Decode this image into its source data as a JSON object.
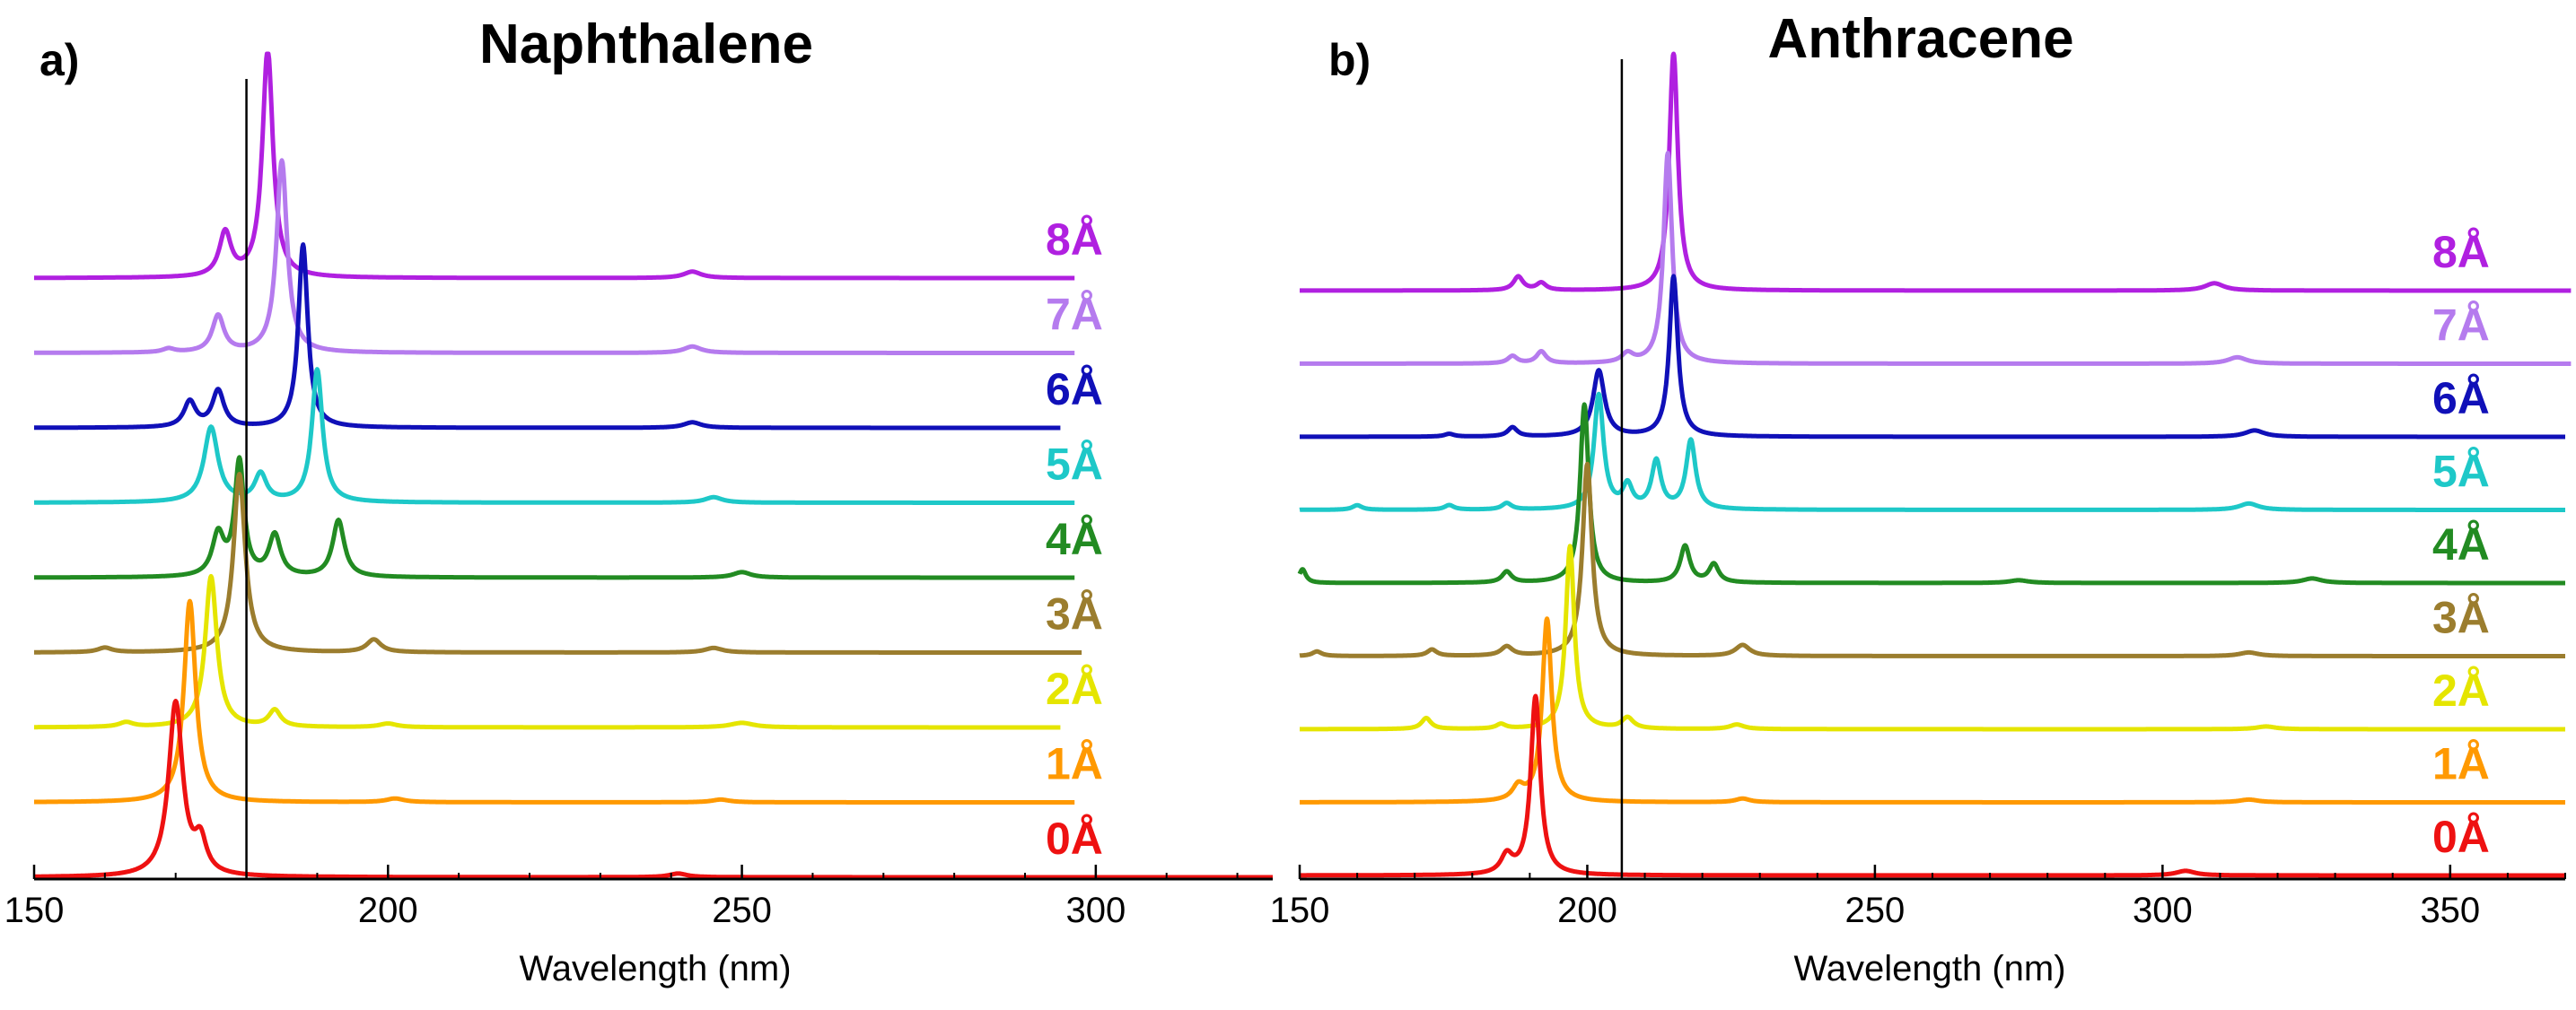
{
  "chart_data": [
    {
      "type": "line",
      "panel": "a)",
      "title": "Naphthalene",
      "xlabel": "Wavelength (nm)",
      "ylabel": "",
      "xlim": [
        150,
        325
      ],
      "xticks": [
        150,
        200,
        250,
        300
      ],
      "xtick_labels": [
        "150",
        "200",
        "250",
        "300"
      ],
      "reference_line_x": 180,
      "grid": false,
      "series": [
        {
          "name": "0Å",
          "label": "0Å",
          "color": "#ee1111",
          "offset": 0,
          "xmax": 325,
          "peaks": [
            [
              170,
              1.9,
              1.2
            ],
            [
              173.5,
              0.35,
              1.0
            ],
            [
              241,
              0.04,
              1.5
            ]
          ]
        },
        {
          "name": "1Å",
          "label": "1Å",
          "color": "#ff9900",
          "offset": 1,
          "xmax": 297,
          "peaks": [
            [
              172,
              2.2,
              1.0
            ],
            [
              201,
              0.04,
              1.5
            ],
            [
              247,
              0.03,
              1.5
            ]
          ]
        },
        {
          "name": "2Å",
          "label": "2Å",
          "color": "#e5e500",
          "offset": 2,
          "xmax": 295,
          "peaks": [
            [
              163,
              0.05,
              1.2
            ],
            [
              175,
              1.65,
              1.0
            ],
            [
              184,
              0.18,
              1.0
            ],
            [
              200,
              0.04,
              1.5
            ],
            [
              250,
              0.05,
              2.0
            ]
          ]
        },
        {
          "name": "3Å",
          "label": "3Å",
          "color": "#9b7d2e",
          "offset": 3,
          "xmax": 298,
          "peaks": [
            [
              160,
              0.05,
              1.2
            ],
            [
              179,
              1.95,
              1.0
            ],
            [
              198,
              0.14,
              1.2
            ],
            [
              246,
              0.05,
              1.5
            ]
          ]
        },
        {
          "name": "4Å",
          "label": "4Å",
          "color": "#228b22",
          "offset": 4,
          "xmax": 297,
          "peaks": [
            [
              176,
              0.45,
              1.0
            ],
            [
              179,
              1.25,
              0.8
            ],
            [
              184,
              0.45,
              1.0
            ],
            [
              193,
              0.62,
              1.0
            ],
            [
              250,
              0.06,
              1.5
            ]
          ]
        },
        {
          "name": "5Å",
          "label": "5Å",
          "color": "#1ec8c8",
          "offset": 5,
          "xmax": 297,
          "peaks": [
            [
              175,
              0.82,
              1.2
            ],
            [
              182,
              0.3,
              1.0
            ],
            [
              190,
              1.45,
              0.9
            ],
            [
              246,
              0.06,
              1.5
            ]
          ]
        },
        {
          "name": "6Å",
          "label": "6Å",
          "color": "#1010b8",
          "offset": 6,
          "xmax": 295,
          "peaks": [
            [
              172,
              0.28,
              1.0
            ],
            [
              176,
              0.4,
              1.0
            ],
            [
              188,
              2.0,
              0.8
            ],
            [
              243,
              0.06,
              1.5
            ]
          ]
        },
        {
          "name": "7Å",
          "label": "7Å",
          "color": "#b57bee",
          "offset": 7,
          "xmax": 297,
          "peaks": [
            [
              169,
              0.04,
              1.0
            ],
            [
              176,
              0.4,
              1.0
            ],
            [
              185,
              2.1,
              0.9
            ],
            [
              243,
              0.07,
              1.5
            ]
          ]
        },
        {
          "name": "8Å",
          "label": "8Å",
          "color": "#b020e0",
          "offset": 8,
          "xmax": 297,
          "peaks": [
            [
              177,
              0.48,
              1.0
            ],
            [
              183,
              2.5,
              0.9
            ],
            [
              243,
              0.07,
              1.5
            ]
          ]
        }
      ]
    },
    {
      "type": "line",
      "panel": "b)",
      "title": "Anthracene",
      "xlabel": "Wavelength (nm)",
      "ylabel": "",
      "xlim": [
        150,
        370
      ],
      "xticks": [
        150,
        200,
        250,
        300,
        350
      ],
      "xtick_labels": [
        "150",
        "200",
        "250",
        "300",
        "350"
      ],
      "reference_line_x": 206,
      "grid": false,
      "series": [
        {
          "name": "0Å",
          "label": "0Å",
          "color": "#ee1111",
          "offset": 0,
          "xmax": 370,
          "peaks": [
            [
              186,
              0.2,
              1.2
            ],
            [
              191,
              1.95,
              1.0
            ],
            [
              304,
              0.05,
              2.0
            ]
          ]
        },
        {
          "name": "1Å",
          "label": "1Å",
          "color": "#ff9900",
          "offset": 1,
          "xmax": 370,
          "peaks": [
            [
              188,
              0.15,
              1.2
            ],
            [
              193,
              2.0,
              1.0
            ],
            [
              227,
              0.04,
              1.5
            ],
            [
              315,
              0.03,
              2.0
            ]
          ]
        },
        {
          "name": "2Å",
          "label": "2Å",
          "color": "#e5e500",
          "offset": 2,
          "xmax": 370,
          "peaks": [
            [
              172,
              0.12,
              1.0
            ],
            [
              185,
              0.05,
              1.0
            ],
            [
              197,
              2.0,
              0.9
            ],
            [
              207,
              0.12,
              1.2
            ],
            [
              226,
              0.05,
              1.5
            ],
            [
              318,
              0.03,
              2.0
            ]
          ]
        },
        {
          "name": "3Å",
          "label": "3Å",
          "color": "#9b7d2e",
          "offset": 3,
          "xmax": 370,
          "peaks": [
            [
              153,
              0.05,
              1.0
            ],
            [
              173,
              0.07,
              1.0
            ],
            [
              186,
              0.1,
              1.2
            ],
            [
              200,
              2.1,
              1.0
            ],
            [
              227,
              0.12,
              1.5
            ],
            [
              315,
              0.04,
              2.0
            ]
          ]
        },
        {
          "name": "4Å",
          "label": "4Å",
          "color": "#228b22",
          "offset": 4,
          "xmax": 370,
          "peaks": [
            [
              150.5,
              0.15,
              0.7
            ],
            [
              186,
              0.12,
              1.0
            ],
            [
              199.5,
              1.95,
              0.9
            ],
            [
              217,
              0.4,
              1.0
            ],
            [
              222,
              0.2,
              1.0
            ],
            [
              275,
              0.03,
              2.0
            ],
            [
              326,
              0.05,
              2.0
            ]
          ]
        },
        {
          "name": "5Å",
          "label": "5Å",
          "color": "#1ec8c8",
          "offset": 5,
          "xmax": 370,
          "peaks": [
            [
              160,
              0.05,
              1.0
            ],
            [
              176,
              0.05,
              1.0
            ],
            [
              186,
              0.07,
              1.0
            ],
            [
              202,
              1.25,
              1.0
            ],
            [
              207,
              0.25,
              1.0
            ],
            [
              212,
              0.52,
              1.0
            ],
            [
              218,
              0.75,
              1.0
            ],
            [
              315,
              0.07,
              2.0
            ]
          ]
        },
        {
          "name": "6Å",
          "label": "6Å",
          "color": "#1010b8",
          "offset": 6,
          "xmax": 370,
          "peaks": [
            [
              176,
              0.03,
              1.0
            ],
            [
              187,
              0.1,
              1.0
            ],
            [
              202,
              0.72,
              1.2
            ],
            [
              215,
              1.75,
              0.9
            ],
            [
              316,
              0.07,
              2.0
            ]
          ]
        },
        {
          "name": "7Å",
          "label": "7Å",
          "color": "#b57bee",
          "offset": 7,
          "xmax": 371,
          "peaks": [
            [
              187,
              0.08,
              1.0
            ],
            [
              192,
              0.13,
              1.0
            ],
            [
              207,
              0.1,
              1.2
            ],
            [
              214,
              2.3,
              0.9
            ],
            [
              313,
              0.07,
              2.0
            ]
          ]
        },
        {
          "name": "8Å",
          "label": "8Å",
          "color": "#b020e0",
          "offset": 8,
          "xmax": 371,
          "peaks": [
            [
              188,
              0.15,
              1.0
            ],
            [
              192,
              0.08,
              1.0
            ],
            [
              215,
              2.6,
              0.9
            ],
            [
              309,
              0.08,
              2.0
            ]
          ]
        }
      ]
    }
  ]
}
